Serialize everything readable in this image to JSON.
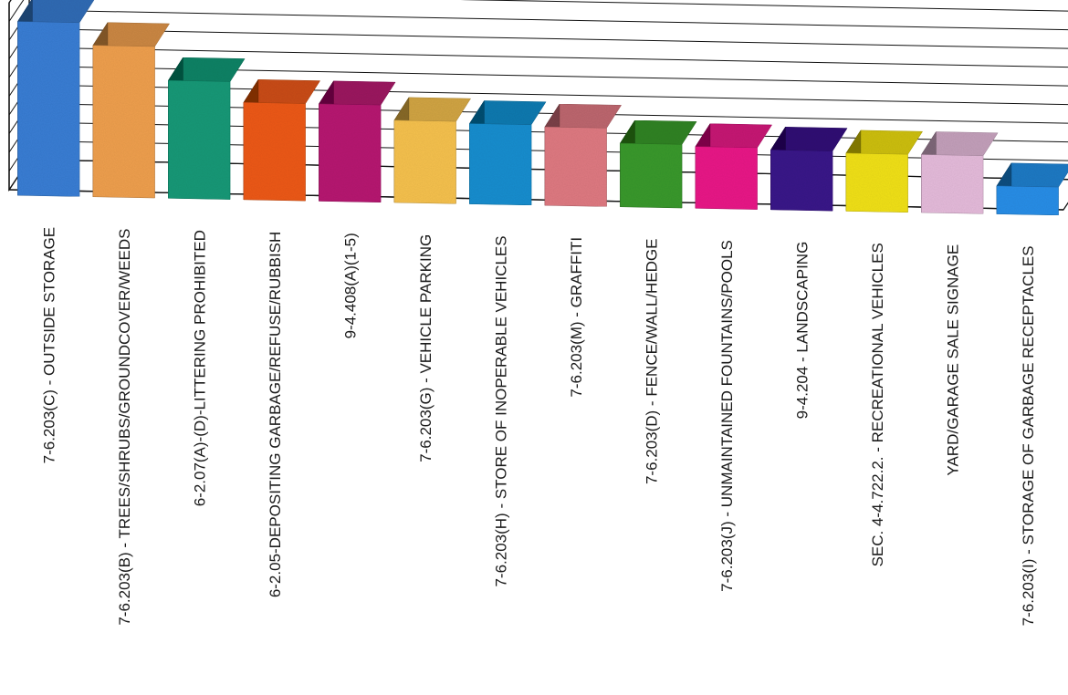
{
  "chart_data": {
    "type": "bar",
    "title": "",
    "xlabel": "",
    "ylabel": "",
    "ylim": [
      0,
      10
    ],
    "grid": true,
    "legend": "none",
    "categories": [
      "7-6.203(C) - OUTSIDE STORAGE",
      "7-6.203(B) - TREES/SHRUBS/GROUNDCOVER/WEEDS",
      "6-2.07(A)-(D)-LITTERING PROHIBITED",
      "6-2.05-DEPOSITING GARBAGE/REFUSE/RUBBISH",
      "9-4.408(A)(1-5)",
      "7-6.203(G) - VEHICLE PARKING",
      "7-6.203(H) - STORE OF INOPERABLE VEHICLES",
      "7-6.203(M) - GRAFFITI",
      "7-6.203(D) - FENCE/WALL/HEDGE",
      "7-6.203(J) - UNMAINTAINED FOUNTAINS/POOLS",
      "9-4.204 - LANDSCAPING",
      "SEC. 4-4.722.2. - RECREATIONAL VEHICLES",
      "YARD/GARAGE SALE SIGNAGE",
      "7-6.203(I) - STORAGE OF GARBAGE RECEPTACLES"
    ],
    "values": [
      9.3,
      8.1,
      6.3,
      5.2,
      5.2,
      4.4,
      4.3,
      4.2,
      3.4,
      3.3,
      3.2,
      3.1,
      3.1,
      1.5
    ],
    "colors": [
      "#3a7fd5",
      "#f0a050",
      "#1a9a78",
      "#ee5a1e",
      "#b81e72",
      "#f7c250",
      "#1a8fd0",
      "#e07a82",
      "#3a9a2e",
      "#ea1e88",
      "#3a1a8a",
      "#f2e21a",
      "#e6bcdc",
      "#2a8fe8"
    ]
  }
}
